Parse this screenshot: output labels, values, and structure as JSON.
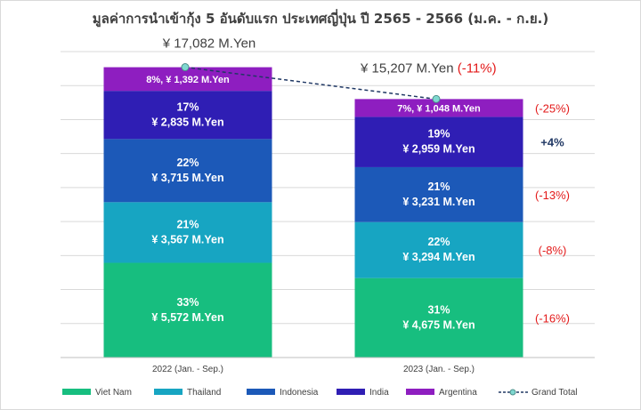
{
  "chart_data": {
    "type": "bar",
    "stacked": true,
    "title": "มูลค่าการนำเข้ากุ้ง 5 อันดับแรก ประเทศญี่ปุ่น ปี 2565 - 2566 (ม.ค. - ก.ย.)",
    "categories": [
      "2022 (Jan. - Sep.)",
      "2023 (Jan. - Sep.)"
    ],
    "unit": "M.Yen",
    "ylim": [
      0,
      18000
    ],
    "grid": true,
    "legend_position": "bottom",
    "series": [
      {
        "name": "Viet Nam",
        "color": "#17be7f",
        "values": [
          5572,
          4675
        ],
        "labels": [
          "33%\n¥ 5,572  M.Yen",
          "31%\n¥ 4,675  M.Yen"
        ]
      },
      {
        "name": "Thailand",
        "color": "#17a5c2",
        "values": [
          3567,
          3294
        ],
        "labels": [
          "21%\n¥ 3,567  M.Yen",
          "22%\n¥ 3,294  M.Yen"
        ]
      },
      {
        "name": "Indonesia",
        "color": "#1c59b8",
        "values": [
          3715,
          3231
        ],
        "labels": [
          "22%\n¥ 3,715  M.Yen",
          "21%\n¥ 3,231  M.Yen"
        ]
      },
      {
        "name": "India",
        "color": "#2f1eb4",
        "values": [
          2835,
          2959
        ],
        "labels": [
          "17%\n¥ 2,835  M.Yen",
          "19%\n¥ 2,959  M.Yen"
        ]
      },
      {
        "name": "Argentina",
        "color": "#8e1ec0",
        "values": [
          1392,
          1048
        ],
        "labels": [
          "8%, ¥ 1,392  M.Yen",
          "7%, ¥ 1,048  M.Yen"
        ]
      }
    ],
    "grand_total": {
      "name": "Grand Total",
      "values": [
        17082,
        15207
      ],
      "labels": [
        "¥ 17,082  M.Yen",
        "¥ 15,207  M.Yen"
      ],
      "change_label": "(-11%)",
      "line_color": "#203864",
      "marker_color": "#7fd8d0"
    },
    "changes": [
      {
        "series": "Argentina",
        "label": "(-25%)",
        "direction": "down"
      },
      {
        "series": "India",
        "label": "+4%",
        "direction": "up"
      },
      {
        "series": "Indonesia",
        "label": "(-13%)",
        "direction": "down"
      },
      {
        "series": "Thailand",
        "label": "(-8%)",
        "direction": "down"
      },
      {
        "series": "Viet Nam",
        "label": "(-16%)",
        "direction": "down"
      }
    ]
  }
}
